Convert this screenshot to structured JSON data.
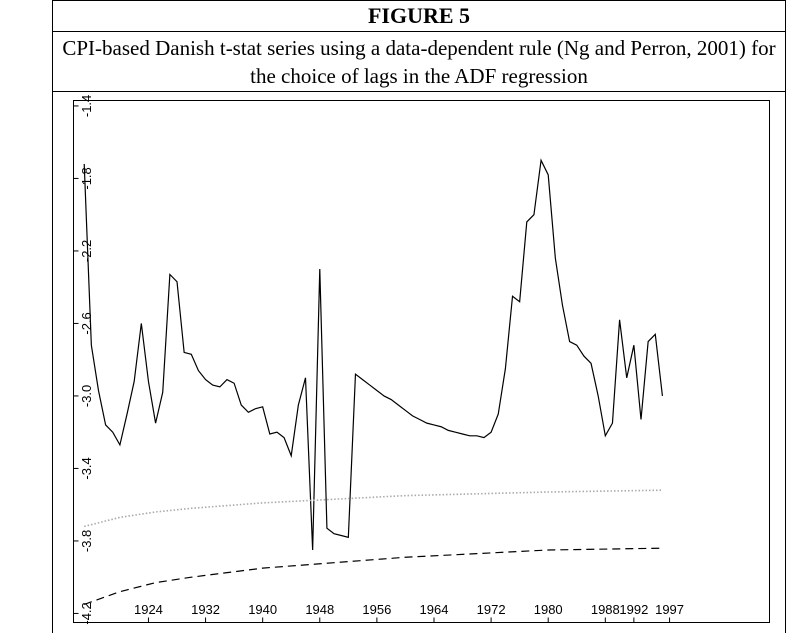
{
  "chart_data": {
    "type": "line",
    "title": "FIGURE 5",
    "subtitle": "CPI-based Danish t-stat series using a data-dependent rule (Ng and Perron, 2001) for the choice of lags in the ADF regression",
    "xlim": [
      1913.5,
      2011
    ],
    "ylim": [
      -4.25,
      -1.37
    ],
    "xticks": [
      1924,
      1932,
      1940,
      1948,
      1956,
      1964,
      1972,
      1980,
      1988,
      1992,
      1997
    ],
    "yticks": [
      -4.2,
      -3.8,
      -3.4,
      {
        "value": -3,
        "label": "-3.0"
      },
      -2.6,
      -2.2,
      -1.8,
      -1.4
    ],
    "grid": false,
    "series": [
      {
        "color": "#000000",
        "style": "solid",
        "x": [
          1915,
          1916,
          1917,
          1918,
          1919,
          1920,
          1921,
          1922,
          1923,
          1924,
          1925,
          1926,
          1927,
          1928,
          1929,
          1930,
          1931,
          1932,
          1933,
          1934,
          1935,
          1936,
          1937,
          1938,
          1939,
          1940,
          1941,
          1942,
          1943,
          1944,
          1945,
          1946,
          1947,
          1948,
          1949,
          1950,
          1951,
          1952,
          1953,
          1954,
          1955,
          1956,
          1957,
          1958,
          1959,
          1960,
          1961,
          1962,
          1963,
          1964,
          1965,
          1966,
          1967,
          1968,
          1969,
          1970,
          1971,
          1972,
          1973,
          1974,
          1975,
          1976,
          1977,
          1978,
          1979,
          1980,
          1981,
          1982,
          1983,
          1984,
          1985,
          1986,
          1987,
          1988,
          1989,
          1990,
          1991,
          1992,
          1993,
          1994,
          1995,
          1996
        ],
        "values": [
          -1.72,
          -2.72,
          -2.97,
          -3.16,
          -3.2,
          -3.27,
          -3.1,
          -2.92,
          -2.6,
          -2.92,
          -3.15,
          -2.98,
          -2.33,
          -2.37,
          -2.76,
          -2.77,
          -2.86,
          -2.91,
          -2.94,
          -2.95,
          -2.91,
          -2.93,
          -3.05,
          -3.09,
          -3.07,
          -3.06,
          -3.21,
          -3.2,
          -3.23,
          -3.33,
          -3.05,
          -2.9,
          -3.85,
          -2.3,
          -3.73,
          -3.76,
          -3.77,
          -3.78,
          -2.88,
          -2.91,
          -2.94,
          -2.97,
          -3.0,
          -3.02,
          -3.05,
          -3.08,
          -3.11,
          -3.13,
          -3.15,
          -3.16,
          -3.17,
          -3.19,
          -3.2,
          -3.21,
          -3.22,
          -3.22,
          -3.23,
          -3.2,
          -3.1,
          -2.85,
          -2.45,
          -2.48,
          -2.04,
          -2.0,
          -1.7,
          -1.78,
          -2.24,
          -2.5,
          -2.7,
          -2.72,
          -2.78,
          -2.82,
          -3.0,
          -3.22,
          -3.15,
          -2.58,
          -2.9,
          -2.72,
          -3.13,
          -2.7,
          -2.66,
          -3.0
        ]
      },
      {
        "color": "#aaaaaa",
        "style": "dotted",
        "x": [
          1915,
          1920,
          1925,
          1930,
          1940,
          1950,
          1960,
          1970,
          1980,
          1996
        ],
        "values": [
          -3.72,
          -3.67,
          -3.64,
          -3.62,
          -3.59,
          -3.57,
          -3.55,
          -3.54,
          -3.53,
          -3.52
        ]
      },
      {
        "color": "#000000",
        "style": "dashed",
        "x": [
          1915,
          1920,
          1925,
          1930,
          1940,
          1950,
          1960,
          1970,
          1980,
          1996
        ],
        "values": [
          -4.15,
          -4.08,
          -4.03,
          -4.0,
          -3.95,
          -3.92,
          -3.89,
          -3.87,
          -3.85,
          -3.84
        ]
      }
    ]
  }
}
